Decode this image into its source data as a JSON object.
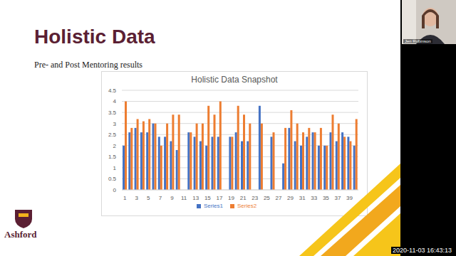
{
  "slide": {
    "title": "Holistic Data",
    "subtitle": "Pre- and Post Mentoring results",
    "logo": "Ashford",
    "presenter": "Jen Robinson",
    "timestamp": "2020-11-03 16:43:13"
  },
  "chart_data": {
    "type": "bar",
    "title": "Holistic Data Snapshot",
    "categories": [
      "1",
      null,
      "3",
      null,
      "5",
      null,
      "7",
      null,
      "9",
      null,
      "11",
      null,
      "13",
      null,
      "15",
      null,
      "17",
      null,
      "19",
      null,
      "21",
      null,
      "23",
      null,
      "25",
      null,
      "27",
      null,
      "29",
      null,
      "31",
      null,
      "33",
      null,
      "35",
      null,
      "37",
      null,
      "39",
      null
    ],
    "series": [
      {
        "name": "Series1",
        "color": "#4472c4",
        "values": [
          2.0,
          2.6,
          2.8,
          2.6,
          2.6,
          3.0,
          2.4,
          2.4,
          2.2,
          1.8,
          null,
          2.6,
          2.4,
          2.2,
          2.0,
          2.4,
          2.4,
          null,
          2.4,
          2.6,
          2.2,
          2.2,
          null,
          3.8,
          null,
          2.4,
          null,
          1.2,
          2.8,
          2.2,
          2.0,
          2.4,
          2.6,
          2.0,
          2.0,
          2.6,
          2.2,
          2.6,
          2.4,
          2.0
        ]
      },
      {
        "name": "Series2",
        "color": "#ed7d31",
        "values": [
          4.0,
          2.8,
          3.2,
          3.1,
          3.2,
          3.0,
          2.0,
          3.0,
          3.4,
          3.4,
          null,
          2.6,
          3.0,
          3.0,
          3.8,
          3.4,
          4.0,
          null,
          2.4,
          3.8,
          3.4,
          3.0,
          null,
          3.0,
          null,
          2.6,
          null,
          2.8,
          3.6,
          3.0,
          2.6,
          2.8,
          2.6,
          2.8,
          2.0,
          3.4,
          3.0,
          2.4,
          2.2,
          3.2
        ]
      }
    ],
    "ylim": [
      0,
      4.5
    ],
    "yticks": [
      0,
      0.5,
      1,
      1.5,
      2,
      2.5,
      3,
      3.5,
      4,
      4.5
    ],
    "grid": true,
    "legend": "bottom"
  }
}
